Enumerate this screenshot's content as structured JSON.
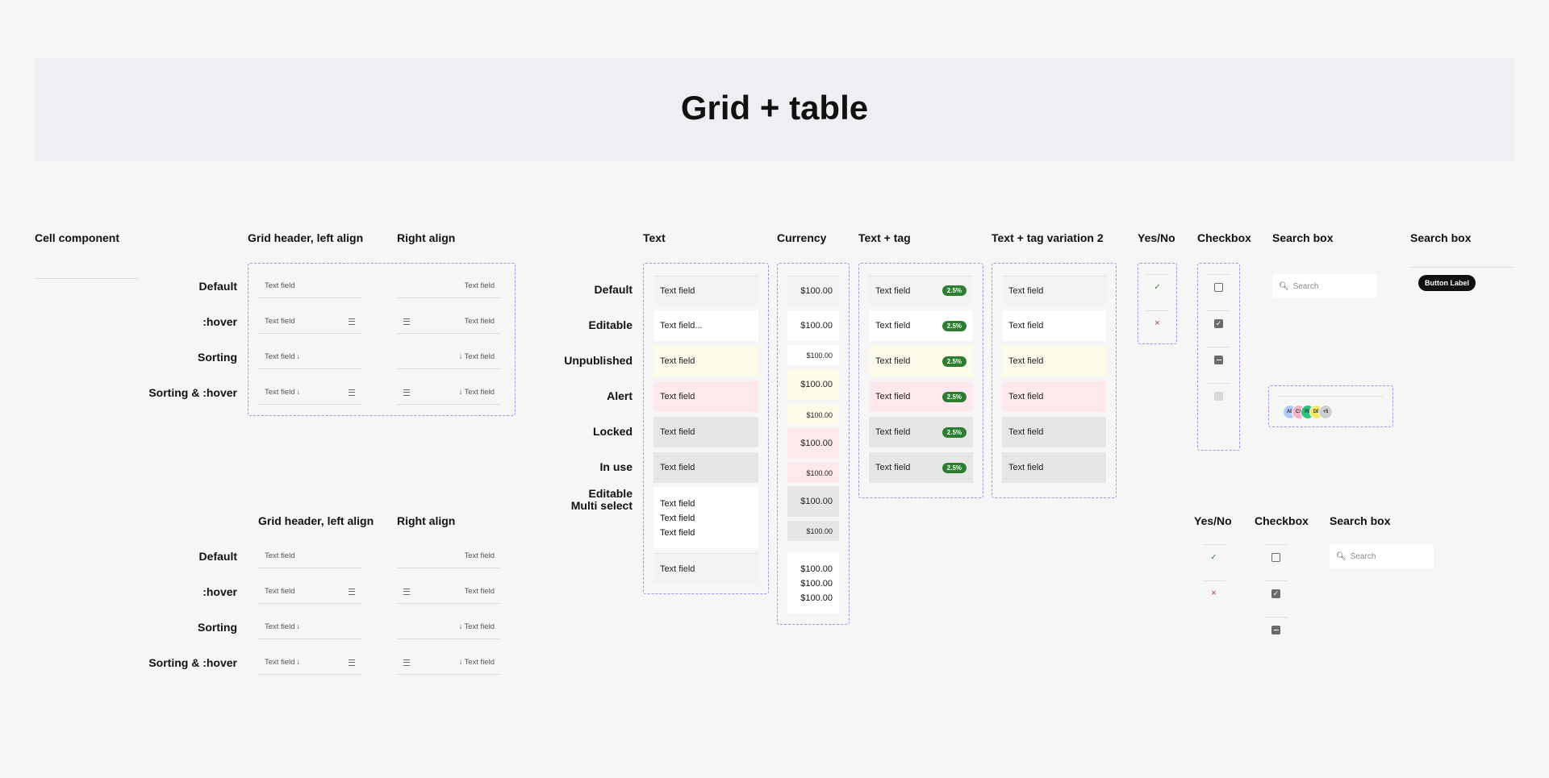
{
  "page": {
    "title": "Grid + table"
  },
  "sections": {
    "cell_component": "Cell component",
    "grid_header_left": "Grid header, left align",
    "right_align": "Right align",
    "text": "Text",
    "currency": "Currency",
    "text_tag": "Text + tag",
    "text_tag_v2": "Text + tag variation 2",
    "yes_no": "Yes/No",
    "checkbox": "Checkbox",
    "search_box": "Search box",
    "search_box_2": "Search box"
  },
  "header_states": [
    "Default",
    ":hover",
    "Sorting",
    "Sorting & :hover"
  ],
  "cell_states": [
    "Default",
    "Editable",
    "Unpublished",
    "Alert",
    "Locked",
    "In use",
    "Editable",
    "Multi select"
  ],
  "header_cell_text": "Text field",
  "sort_arrow": "🡓",
  "text_column": {
    "default": "Text field",
    "editable": "Text field...",
    "unpublished": "Text field",
    "alert": "Text field",
    "locked": "Text field",
    "in_use": "Text field",
    "multi": [
      "Text field",
      "Text field",
      "Text field"
    ],
    "last": "Text field"
  },
  "currency_column": {
    "value": "$100.00",
    "multi": [
      "$100.00",
      "$100.00",
      "$100.00"
    ]
  },
  "tag_column": {
    "text": "Text field",
    "tag": "2.5%"
  },
  "tag_v2_column": {
    "text": "Text field"
  },
  "yes_no": {
    "yes": "✓",
    "no": "×"
  },
  "checkbox": {
    "check": "✓"
  },
  "search": {
    "placeholder": "Search"
  },
  "button": {
    "label": "Button Label"
  },
  "avatars": [
    "AE",
    "CX",
    "PL",
    "DE",
    "+5"
  ],
  "colors": {
    "dashed_border": "#a98cf0",
    "tag_green": "#2e7d32",
    "unpublished": "#fcfbe9",
    "alert": "#fde9ec",
    "locked": "#e6e6e6",
    "default_cell": "#f3f3f3",
    "yes": "#2e7d32",
    "no": "#c62828"
  }
}
